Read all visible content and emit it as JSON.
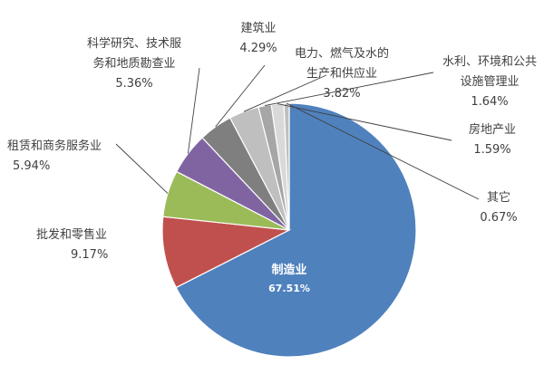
{
  "chart_data": {
    "type": "pie",
    "start_angle_deg": 0,
    "direction": "clockwise",
    "slices": [
      {
        "label": [
          "制造业"
        ],
        "value": 67.51,
        "value_label": "67.51%",
        "color": "#4F81BD"
      },
      {
        "label": [
          "批发和零售业"
        ],
        "value": 9.17,
        "value_label": "9.17%",
        "color": "#C0504D"
      },
      {
        "label": [
          "租赁和商务服务业"
        ],
        "value": 5.94,
        "value_label": "5.94%",
        "color": "#9BBB59"
      },
      {
        "label": [
          "科学研究、技术服",
          "务和地质勘查业"
        ],
        "value": 5.36,
        "value_label": "5.36%",
        "color": "#8064A2"
      },
      {
        "label": [
          "建筑业"
        ],
        "value": 4.29,
        "value_label": "4.29%",
        "color": "#7F7F7F"
      },
      {
        "label": [
          "电力、燃气及水的",
          "生产和供应业"
        ],
        "value": 3.82,
        "value_label": "3.82%",
        "color": "#BFBFBF"
      },
      {
        "label": [
          "水利、环境和公共",
          "设施管理业"
        ],
        "value": 1.64,
        "value_label": "1.64%",
        "color": "#A6A6A6"
      },
      {
        "label": [
          "房地产业"
        ],
        "value": 1.59,
        "value_label": "1.59%",
        "color": "#D9D9D9"
      },
      {
        "label": [
          "其它"
        ],
        "value": 0.67,
        "value_label": "0.67%",
        "color": "#BFBFBF"
      }
    ]
  }
}
